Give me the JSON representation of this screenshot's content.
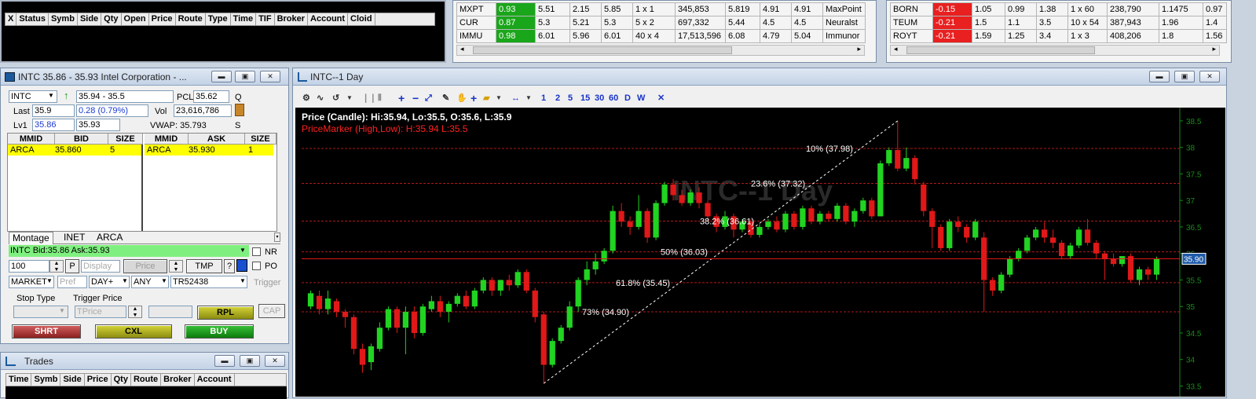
{
  "orders": {
    "columns": [
      "X",
      "Status",
      "Symb",
      "Side",
      "Qty",
      "Open",
      "Price",
      "Route",
      "Type",
      "Time",
      "TIF",
      "Broker",
      "Account",
      "Cloid"
    ]
  },
  "scanner1": {
    "rows": [
      {
        "sym": "MXPT",
        "chg": "0.93",
        "c2": "5.51",
        "c3": "2.15",
        "c4": "5.85",
        "c5": "1 x 1",
        "c6": "345,853",
        "c7": "5.819",
        "c8": "4.91",
        "c9": "4.91",
        "name": "MaxPoint"
      },
      {
        "sym": "CUR",
        "chg": "0.87",
        "c2": "5.3",
        "c3": "5.21",
        "c4": "5.3",
        "c5": "5 x 2",
        "c6": "697,332",
        "c7": "5.44",
        "c8": "4.5",
        "c9": "4.5",
        "name": "Neuralst"
      },
      {
        "sym": "IMMU",
        "chg": "0.98",
        "c2": "6.01",
        "c3": "5.96",
        "c4": "6.01",
        "c5": "40 x 4",
        "c6": "17,513,596",
        "c7": "6.08",
        "c8": "4.79",
        "c9": "5.04",
        "name": "Immunor"
      }
    ]
  },
  "scanner2": {
    "rows": [
      {
        "sym": "BORN",
        "chg": "-0.15",
        "c2": "1.05",
        "c3": "0.99",
        "c4": "1.38",
        "c5": "1 x 60",
        "c6": "238,790",
        "c7": "1.1475",
        "c8": "0.97"
      },
      {
        "sym": "TEUM",
        "chg": "-0.21",
        "c2": "1.5",
        "c3": "1.1",
        "c4": "3.5",
        "c5": "10 x 54",
        "c6": "387,943",
        "c7": "1.96",
        "c8": "1.4"
      },
      {
        "sym": "ROYT",
        "chg": "-0.21",
        "c2": "1.59",
        "c3": "1.25",
        "c4": "3.4",
        "c5": "1 x 3",
        "c6": "408,206",
        "c7": "1.8",
        "c8": "1.56"
      }
    ]
  },
  "montage": {
    "title": "INTC   35.86 - 35.93   Intel Corporation - ...",
    "symbol": "INTC",
    "range": "35.94 - 35.5",
    "pcl_label": "PCL",
    "pcl": "35.62",
    "q": "Q",
    "last_label": "Last",
    "last": "35.9",
    "change": "0.28  (0.79%)",
    "vol_label": "Vol",
    "vol": "23,616,786",
    "lv1_label": "Lv1",
    "bid": "35.86",
    "ask": "35.93",
    "vwap": "VWAP: 35.793",
    "s": "S",
    "bid_cols": [
      "MMID",
      "BID",
      "SIZE"
    ],
    "ask_cols": [
      "MMID",
      "ASK",
      "SIZE"
    ],
    "bid_row": [
      "ARCA",
      "35.860",
      "5"
    ],
    "ask_row": [
      "ARCA",
      "35.930",
      "1"
    ],
    "tabs": [
      "Montage",
      "INET",
      "ARCA"
    ],
    "quote_bar": "INTC Bid:35.86 Ask:35.93",
    "nr": "NR",
    "po": "PO",
    "qty": "100",
    "p": "P",
    "display": "Display",
    "price_btn": "Price",
    "tmp": "TMP",
    "qmark": "?",
    "order_type": "MARKET",
    "pref": "Pref",
    "tif": "DAY+",
    "any": "ANY",
    "account": "TR52438",
    "trigger": "Trigger",
    "stop_type": "Stop Type",
    "trigger_price": "Trigger Price",
    "tprice": "TPrice",
    "rpl": "RPL",
    "cap": "CAP",
    "shrt": "SHRT",
    "cxl": "CXL",
    "buy": "BUY"
  },
  "trades": {
    "title": "Trades",
    "columns": [
      "Time",
      "Symb",
      "Side",
      "Price",
      "Qty",
      "Route",
      "Broker",
      "Account"
    ]
  },
  "chart_window": {
    "title": "INTC--1 Day",
    "toolbar_nums": [
      "1",
      "2",
      "5",
      "15",
      "30",
      "60",
      "D",
      "W"
    ]
  },
  "chart_data": {
    "type": "candlestick",
    "watermark": "INTC--1 Day",
    "legend_price": "Price (Candle): Hi:35.94, Lo:35.5, O:35.6, L:35.9",
    "legend_marker": "PriceMarker (High,Low): H:35.94 L:35.5",
    "ylim": [
      33.3,
      38.75
    ],
    "yticks": [
      "33.5",
      "34",
      "34.5",
      "35",
      "35.5",
      "36",
      "36.5",
      "37",
      "37.5",
      "38",
      "38.5"
    ],
    "last_price": "35.90",
    "last_value": 35.9,
    "fib_levels": [
      {
        "label": "10% (37.98)",
        "value": 37.98
      },
      {
        "label": "23.6% (37.32)",
        "value": 37.32
      },
      {
        "label": "38.2% (36.61)",
        "value": 36.61
      },
      {
        "label": "50% (36.03)",
        "value": 36.03
      },
      {
        "label": "61.8% (35.45)",
        "value": 35.45
      },
      {
        "label": "73% (34.90)",
        "value": 34.9
      }
    ],
    "candles": [
      [
        35.0,
        35.25,
        35.3,
        34.95
      ],
      [
        35.2,
        34.95,
        35.3,
        34.85
      ],
      [
        34.95,
        35.15,
        35.3,
        34.85
      ],
      [
        35.1,
        34.9,
        35.15,
        34.8
      ],
      [
        34.9,
        34.8,
        34.95,
        34.6
      ],
      [
        34.8,
        34.2,
        34.85,
        34.1
      ],
      [
        34.2,
        33.9,
        34.3,
        33.75
      ],
      [
        33.95,
        34.25,
        34.3,
        33.8
      ],
      [
        34.2,
        34.6,
        34.7,
        34.15
      ],
      [
        34.6,
        34.95,
        35.0,
        34.55
      ],
      [
        34.95,
        34.6,
        35.0,
        34.5
      ],
      [
        34.6,
        34.9,
        35.0,
        34.1
      ],
      [
        34.9,
        34.5,
        35.0,
        34.4
      ],
      [
        34.5,
        35.0,
        35.05,
        34.45
      ],
      [
        34.95,
        35.1,
        35.2,
        34.9
      ],
      [
        35.1,
        34.9,
        35.2,
        34.8
      ],
      [
        34.9,
        35.05,
        35.1,
        34.7
      ],
      [
        35.05,
        35.2,
        35.25,
        35.0
      ],
      [
        35.2,
        35.0,
        35.3,
        34.95
      ],
      [
        35.0,
        35.3,
        35.35,
        34.95
      ],
      [
        35.3,
        35.5,
        35.55,
        35.25
      ],
      [
        35.5,
        35.3,
        35.55,
        35.2
      ],
      [
        35.3,
        35.5,
        35.5,
        35.2
      ],
      [
        35.5,
        35.4,
        35.6,
        35.3
      ],
      [
        35.4,
        35.65,
        35.7,
        35.35
      ],
      [
        35.65,
        35.3,
        35.7,
        35.25
      ],
      [
        35.3,
        34.8,
        35.35,
        34.7
      ],
      [
        34.85,
        33.9,
        34.9,
        33.55
      ],
      [
        33.9,
        34.35,
        34.4,
        33.85
      ],
      [
        34.35,
        34.6,
        34.65,
        34.3
      ],
      [
        34.6,
        35.0,
        35.1,
        34.55
      ],
      [
        35.0,
        35.5,
        35.55,
        34.9
      ],
      [
        35.5,
        35.7,
        35.85,
        35.4
      ],
      [
        35.7,
        35.85,
        36.0,
        35.6
      ],
      [
        35.85,
        36.05,
        36.1,
        35.8
      ],
      [
        36.05,
        36.8,
        36.9,
        36.0
      ],
      [
        36.8,
        36.6,
        36.95,
        36.5
      ],
      [
        36.6,
        36.5,
        36.7,
        36.35
      ],
      [
        36.5,
        36.8,
        37.1,
        36.45
      ],
      [
        36.8,
        36.3,
        36.85,
        36.2
      ],
      [
        36.3,
        36.95,
        37.0,
        36.25
      ],
      [
        36.95,
        37.3,
        37.35,
        36.9
      ],
      [
        37.3,
        37.1,
        37.4,
        37.0
      ],
      [
        37.1,
        36.95,
        37.2,
        36.9
      ],
      [
        36.95,
        37.15,
        37.2,
        36.9
      ],
      [
        37.15,
        36.95,
        37.25,
        36.85
      ],
      [
        36.95,
        36.7,
        37.0,
        36.6
      ],
      [
        36.7,
        36.5,
        36.75,
        36.4
      ],
      [
        36.5,
        36.7,
        36.8,
        36.45
      ],
      [
        36.7,
        36.45,
        36.75,
        36.3
      ],
      [
        36.45,
        36.6,
        36.65,
        36.4
      ],
      [
        36.6,
        36.35,
        36.65,
        36.3
      ],
      [
        36.35,
        36.5,
        36.55,
        36.3
      ],
      [
        36.5,
        36.6,
        36.65,
        36.45
      ],
      [
        36.6,
        36.45,
        36.7,
        36.4
      ],
      [
        36.45,
        36.75,
        36.8,
        36.4
      ],
      [
        36.75,
        36.5,
        36.8,
        36.45
      ],
      [
        36.5,
        36.85,
        36.9,
        36.45
      ],
      [
        36.85,
        36.6,
        36.9,
        36.55
      ],
      [
        36.6,
        36.75,
        36.8,
        36.55
      ],
      [
        36.75,
        36.65,
        36.8,
        36.6
      ],
      [
        36.65,
        36.9,
        36.95,
        36.6
      ],
      [
        36.9,
        36.6,
        36.95,
        36.55
      ],
      [
        36.6,
        36.8,
        36.85,
        36.5
      ],
      [
        36.8,
        37.0,
        37.05,
        36.75
      ],
      [
        37.0,
        36.7,
        37.05,
        36.65
      ],
      [
        36.7,
        37.7,
        37.75,
        36.7
      ],
      [
        37.7,
        37.95,
        38.0,
        37.65
      ],
      [
        37.95,
        37.6,
        38.5,
        37.55
      ],
      [
        37.6,
        37.8,
        38.0,
        37.55
      ],
      [
        37.8,
        37.4,
        37.85,
        37.3
      ],
      [
        37.3,
        36.8,
        37.35,
        36.7
      ],
      [
        36.8,
        36.5,
        36.85,
        36.1
      ],
      [
        36.5,
        36.1,
        36.55,
        36.05
      ],
      [
        36.1,
        36.6,
        36.65,
        36.05
      ],
      [
        36.6,
        36.5,
        36.7,
        36.4
      ],
      [
        36.5,
        36.3,
        36.55,
        36.2
      ],
      [
        36.3,
        36.6,
        36.65,
        36.25
      ],
      [
        36.3,
        35.5,
        36.4,
        34.9
      ],
      [
        35.5,
        35.3,
        35.55,
        35.2
      ],
      [
        35.3,
        35.6,
        35.65,
        35.25
      ],
      [
        35.6,
        35.9,
        35.95,
        35.55
      ],
      [
        35.9,
        36.05,
        36.1,
        35.85
      ],
      [
        36.05,
        36.3,
        36.35,
        36.0
      ],
      [
        36.3,
        36.45,
        36.5,
        36.25
      ],
      [
        36.45,
        36.3,
        36.6,
        36.2
      ],
      [
        36.3,
        36.2,
        36.45,
        36.1
      ],
      [
        36.2,
        35.95,
        36.25,
        35.9
      ],
      [
        35.95,
        36.15,
        36.2,
        35.9
      ],
      [
        36.15,
        36.45,
        36.5,
        36.1
      ],
      [
        36.45,
        36.2,
        36.65,
        36.15
      ],
      [
        36.2,
        36.0,
        36.25,
        35.9
      ],
      [
        36.0,
        35.9,
        36.05,
        35.5
      ],
      [
        35.9,
        35.8,
        36.0,
        35.75
      ],
      [
        35.8,
        35.95,
        35.95,
        35.75
      ],
      [
        35.95,
        35.5,
        36.0,
        35.45
      ],
      [
        35.5,
        35.7,
        35.75,
        35.4
      ],
      [
        35.7,
        35.6,
        35.75,
        35.5
      ],
      [
        35.6,
        35.9,
        35.94,
        35.5
      ]
    ]
  }
}
